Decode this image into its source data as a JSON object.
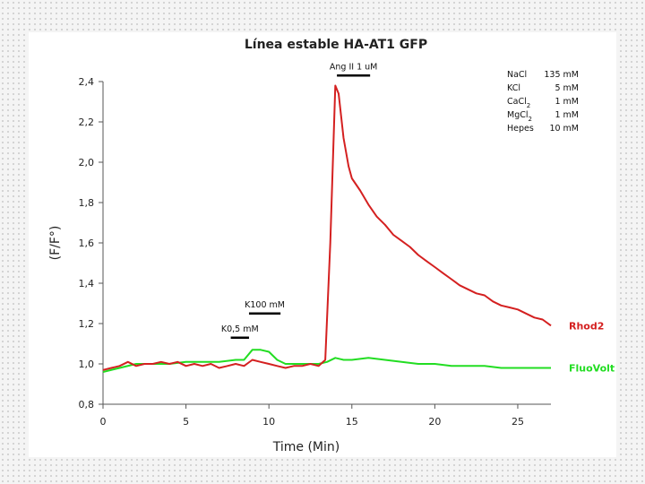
{
  "chart_data": {
    "type": "line",
    "title": "Línea estable HA-AT1 GFP",
    "xlabel": "Time (Min)",
    "ylabel": "(F/F°)",
    "xlim": [
      0,
      27
    ],
    "ylim": [
      0.8,
      2.4
    ],
    "x_ticks": [
      "0",
      "5",
      "10",
      "15",
      "20",
      "25"
    ],
    "y_ticks": [
      "0,8",
      "1,0",
      "1,2",
      "1,4",
      "1,6",
      "1,8",
      "2,0",
      "2,2",
      "2,4"
    ],
    "grid": false,
    "series": [
      {
        "name": "Rhod2",
        "color": "#d42020",
        "x": [
          0,
          0.5,
          1,
          1.5,
          2,
          2.5,
          3,
          3.5,
          4,
          4.5,
          5,
          5.5,
          6,
          6.5,
          7,
          7.5,
          8,
          8.5,
          9,
          9.5,
          10,
          10.5,
          11,
          11.5,
          12,
          12.5,
          13,
          13.4,
          13.7,
          14,
          14.2,
          14.5,
          14.8,
          15,
          15.5,
          16,
          16.5,
          17,
          17.5,
          18,
          18.5,
          19,
          19.5,
          20,
          20.5,
          21,
          21.5,
          22,
          22.5,
          23,
          23.5,
          24,
          24.5,
          25,
          25.5,
          26,
          26.5,
          27
        ],
        "values": [
          0.97,
          0.98,
          0.99,
          1.01,
          0.99,
          1.0,
          1.0,
          1.01,
          1.0,
          1.01,
          0.99,
          1.0,
          0.99,
          1.0,
          0.98,
          0.99,
          1.0,
          0.99,
          1.02,
          1.01,
          1.0,
          0.99,
          0.98,
          0.99,
          0.99,
          1.0,
          0.99,
          1.02,
          1.6,
          2.38,
          2.34,
          2.12,
          1.98,
          1.92,
          1.86,
          1.79,
          1.73,
          1.69,
          1.64,
          1.61,
          1.58,
          1.54,
          1.51,
          1.48,
          1.45,
          1.42,
          1.39,
          1.37,
          1.35,
          1.34,
          1.31,
          1.29,
          1.28,
          1.27,
          1.25,
          1.23,
          1.22,
          1.19
        ]
      },
      {
        "name": "FluoVolt",
        "color": "#22dd22",
        "x": [
          0,
          1,
          2,
          3,
          4,
          5,
          6,
          7,
          8,
          8.5,
          9,
          9.5,
          10,
          10.5,
          11,
          11.5,
          12,
          13,
          13.5,
          14,
          14.5,
          15,
          16,
          17,
          18,
          19,
          20,
          21,
          22,
          23,
          24,
          25,
          26,
          27
        ],
        "values": [
          0.96,
          0.98,
          1.0,
          1.0,
          1.0,
          1.01,
          1.01,
          1.01,
          1.02,
          1.02,
          1.07,
          1.07,
          1.06,
          1.02,
          1.0,
          1.0,
          1.0,
          1.0,
          1.01,
          1.03,
          1.02,
          1.02,
          1.03,
          1.02,
          1.01,
          1.0,
          1.0,
          0.99,
          0.99,
          0.99,
          0.98,
          0.98,
          0.98,
          0.98
        ]
      }
    ],
    "annotations": [
      {
        "text": "K0,5 mM",
        "x_start": 7.7,
        "x_end": 8.8,
        "y": 1.13
      },
      {
        "text": "K100 mM",
        "x_start": 8.8,
        "x_end": 10.7,
        "y": 1.25
      },
      {
        "text": "Ang II 1 uM",
        "x_start": 14.1,
        "x_end": 16.1,
        "y": 2.43
      }
    ],
    "legend": "right"
  },
  "solution": [
    {
      "name": "NaCl",
      "conc": "135 mM"
    },
    {
      "name": "KCl",
      "conc": "5 mM"
    },
    {
      "name": "CaCl",
      "sub": "2",
      "conc": "1 mM"
    },
    {
      "name": "MgCl",
      "sub": "2",
      "conc": "1 mM"
    },
    {
      "name": "Hepes",
      "conc": "10 mM"
    }
  ]
}
